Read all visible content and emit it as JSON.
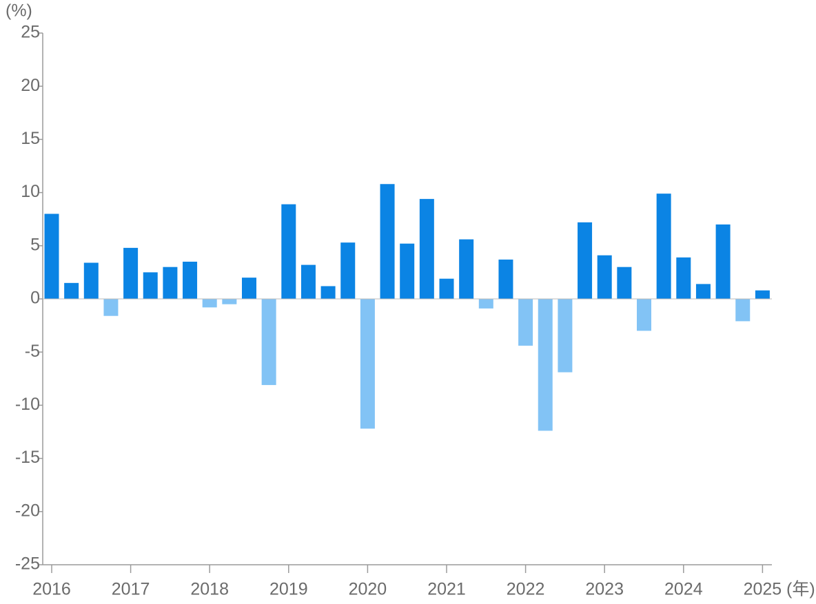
{
  "chart_data": {
    "type": "bar",
    "y_unit": "(%)",
    "x_unit": "(年)",
    "categories": [
      "2016",
      null,
      null,
      null,
      "2017",
      null,
      null,
      null,
      "2018",
      null,
      null,
      null,
      "2019",
      null,
      null,
      null,
      "2020",
      null,
      null,
      null,
      "2021",
      null,
      null,
      null,
      "2022",
      null,
      null,
      null,
      "2023",
      null,
      null,
      null,
      "2024",
      null,
      null,
      null,
      "2025"
    ],
    "values": [
      8.0,
      1.5,
      3.4,
      -1.6,
      4.8,
      2.5,
      3.0,
      3.5,
      -0.8,
      -0.5,
      2.0,
      -8.1,
      8.9,
      3.2,
      1.2,
      5.3,
      -12.2,
      10.8,
      5.2,
      9.4,
      1.9,
      5.6,
      -0.9,
      3.7,
      -4.4,
      -12.4,
      -6.9,
      7.2,
      4.1,
      3.0,
      -3.0,
      9.9,
      3.9,
      1.4,
      7.0,
      -2.1,
      0.8
    ],
    "color": "#0b84e4",
    "negative_color": "#82c3f5",
    "ylim": [
      -25,
      25
    ],
    "yticks": [
      -25,
      -20,
      -15,
      -10,
      -5,
      0,
      5,
      10,
      15,
      20,
      25
    ],
    "grid": false
  }
}
